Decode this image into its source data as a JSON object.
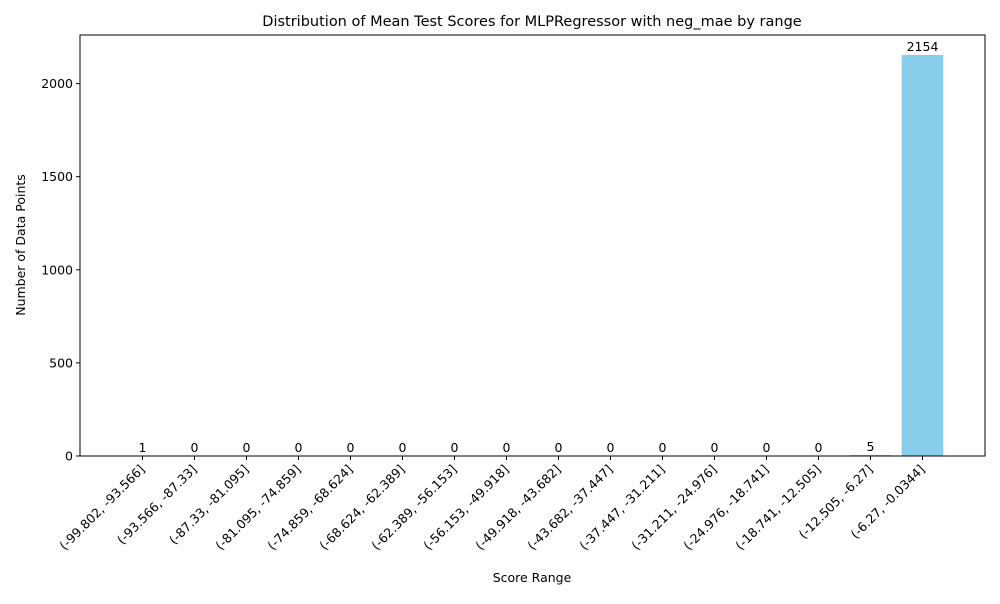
{
  "chart_data": {
    "type": "bar",
    "title": "Distribution of Mean Test Scores for MLPRegressor with neg_mae by range",
    "xlabel": "Score Range",
    "ylabel": "Number of Data Points",
    "categories": [
      "(-99.802, -93.566]",
      "(-93.566, -87.33]",
      "(-87.33, -81.095]",
      "(-81.095, -74.859]",
      "(-74.859, -68.624]",
      "(-68.624, -62.389]",
      "(-62.389, -56.153]",
      "(-56.153, -49.918]",
      "(-49.918, -43.682]",
      "(-43.682, -37.447]",
      "(-37.447, -31.211]",
      "(-31.211, -24.976]",
      "(-24.976, -18.741]",
      "(-18.741, -12.505]",
      "(-12.505, -6.27]",
      "(-6.27, -0.0344]"
    ],
    "values": [
      1,
      0,
      0,
      0,
      0,
      0,
      0,
      0,
      0,
      0,
      0,
      0,
      0,
      0,
      5,
      2154
    ],
    "data_labels": [
      "1",
      "0",
      "0",
      "0",
      "0",
      "0",
      "0",
      "0",
      "0",
      "0",
      "0",
      "0",
      "0",
      "0",
      "5",
      "2154"
    ],
    "ylim": [
      0,
      2261
    ],
    "yticks": [
      0,
      500,
      1000,
      1500,
      2000
    ],
    "ytick_labels": [
      "0",
      "500",
      "1000",
      "1500",
      "2000"
    ],
    "bar_color": "#87ceeb",
    "grid": false,
    "legend": "none"
  }
}
